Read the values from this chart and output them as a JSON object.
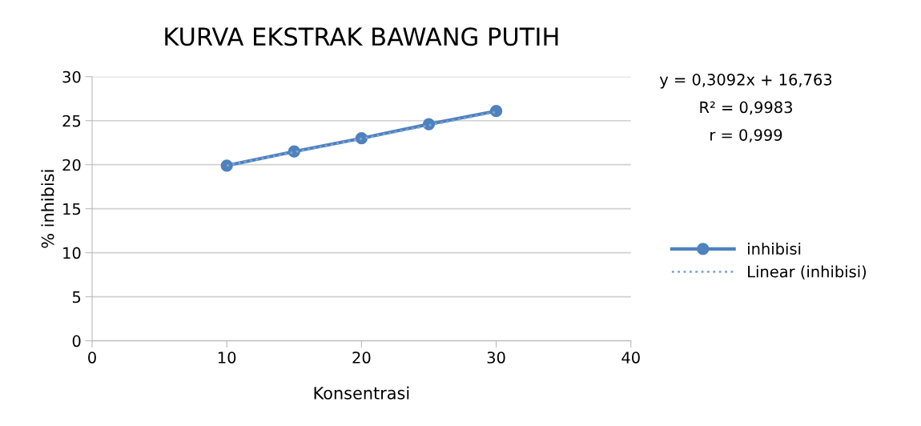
{
  "chart_data": {
    "type": "line",
    "title": "KURVA EKSTRAK BAWANG PUTIH",
    "xlabel": "Konsentrasi",
    "ylabel": "% inhibisi",
    "x": [
      10,
      15,
      20,
      25,
      30
    ],
    "series": [
      {
        "name": "inhibisi",
        "color": "#4f81bd",
        "values": [
          19.9,
          21.5,
          23.0,
          24.6,
          26.1
        ],
        "marker": "circle",
        "line_style": "solid"
      },
      {
        "name": "Linear (inhibisi)",
        "color": "#7ea6d8",
        "x": [
          10,
          30
        ],
        "values": [
          19.9,
          26.0
        ],
        "marker": "none",
        "line_style": "dotted"
      }
    ],
    "xlim": [
      0,
      40
    ],
    "xticks": [
      0,
      10,
      20,
      30,
      40
    ],
    "ylim": [
      0,
      30
    ],
    "yticks": [
      0,
      5,
      10,
      15,
      20,
      25,
      30
    ],
    "grid": "y",
    "legend": "right",
    "annotations": [
      "y = 0,3092x + 16,763",
      "R² = 0,9983",
      "r = 0,999"
    ]
  }
}
